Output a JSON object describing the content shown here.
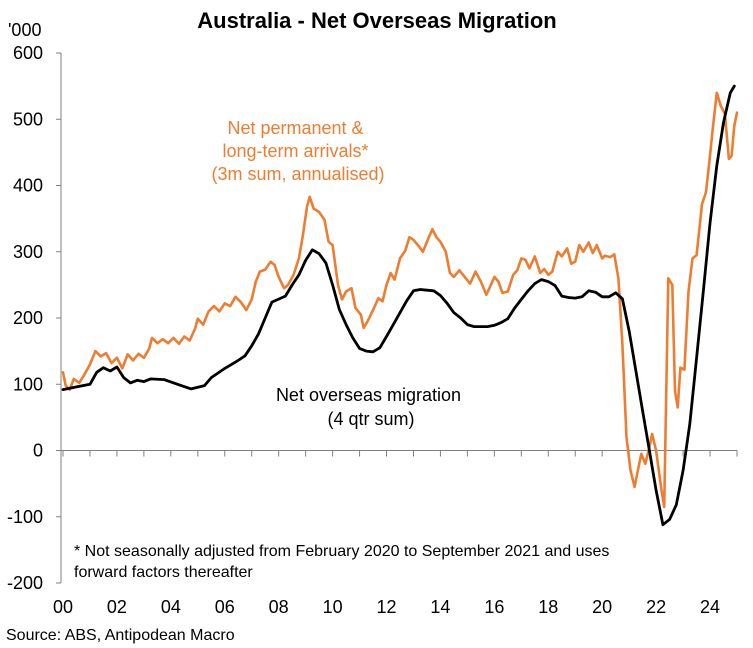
{
  "chart_data": {
    "type": "line",
    "title": "Australia - Net Overseas Migration",
    "ylabel": "'000",
    "ylim": [
      -200,
      600
    ],
    "yticks": [
      -200,
      -100,
      0,
      100,
      200,
      300,
      400,
      500,
      600
    ],
    "xlim": [
      2000,
      2025
    ],
    "xticks": [
      {
        "value": 2000,
        "label": "00"
      },
      {
        "value": 2002,
        "label": "02"
      },
      {
        "value": 2004,
        "label": "04"
      },
      {
        "value": 2006,
        "label": "06"
      },
      {
        "value": 2008,
        "label": "08"
      },
      {
        "value": 2010,
        "label": "10"
      },
      {
        "value": 2012,
        "label": "12"
      },
      {
        "value": 2014,
        "label": "14"
      },
      {
        "value": 2016,
        "label": "16"
      },
      {
        "value": 2018,
        "label": "18"
      },
      {
        "value": 2020,
        "label": "20"
      },
      {
        "value": 2022,
        "label": "22"
      },
      {
        "value": 2024,
        "label": "24"
      }
    ],
    "grid": false,
    "series": [
      {
        "name": "Net overseas migration (4 qtr sum)",
        "color": "#000000",
        "points": [
          [
            2000.0,
            92
          ],
          [
            2000.5,
            96
          ],
          [
            2001.0,
            100
          ],
          [
            2001.25,
            118
          ],
          [
            2001.5,
            125
          ],
          [
            2001.75,
            120
          ],
          [
            2002.0,
            126
          ],
          [
            2002.25,
            110
          ],
          [
            2002.5,
            102
          ],
          [
            2002.75,
            106
          ],
          [
            2003.0,
            104
          ],
          [
            2003.25,
            108
          ],
          [
            2003.75,
            107
          ],
          [
            2004.25,
            100
          ],
          [
            2004.75,
            93
          ],
          [
            2005.25,
            98
          ],
          [
            2005.5,
            110
          ],
          [
            2006.0,
            124
          ],
          [
            2006.5,
            136
          ],
          [
            2006.75,
            143
          ],
          [
            2007.0,
            158
          ],
          [
            2007.25,
            176
          ],
          [
            2007.5,
            200
          ],
          [
            2007.75,
            224
          ],
          [
            2008.25,
            233
          ],
          [
            2008.5,
            250
          ],
          [
            2008.75,
            265
          ],
          [
            2009.0,
            287
          ],
          [
            2009.25,
            303
          ],
          [
            2009.5,
            297
          ],
          [
            2009.75,
            283
          ],
          [
            2010.0,
            250
          ],
          [
            2010.25,
            213
          ],
          [
            2010.5,
            190
          ],
          [
            2010.75,
            170
          ],
          [
            2011.0,
            154
          ],
          [
            2011.25,
            150
          ],
          [
            2011.5,
            149
          ],
          [
            2011.75,
            155
          ],
          [
            2012.0,
            172
          ],
          [
            2012.25,
            190
          ],
          [
            2012.5,
            208
          ],
          [
            2012.75,
            226
          ],
          [
            2013.0,
            241
          ],
          [
            2013.25,
            243
          ],
          [
            2013.5,
            242
          ],
          [
            2013.75,
            241
          ],
          [
            2014.0,
            234
          ],
          [
            2014.25,
            222
          ],
          [
            2014.5,
            208
          ],
          [
            2014.75,
            200
          ],
          [
            2015.0,
            190
          ],
          [
            2015.25,
            187
          ],
          [
            2015.75,
            187
          ],
          [
            2016.0,
            189
          ],
          [
            2016.25,
            193
          ],
          [
            2016.5,
            199
          ],
          [
            2016.75,
            215
          ],
          [
            2017.0,
            228
          ],
          [
            2017.25,
            241
          ],
          [
            2017.5,
            252
          ],
          [
            2017.75,
            258
          ],
          [
            2018.0,
            255
          ],
          [
            2018.25,
            249
          ],
          [
            2018.5,
            233
          ],
          [
            2018.75,
            231
          ],
          [
            2019.0,
            230
          ],
          [
            2019.25,
            232
          ],
          [
            2019.5,
            241
          ],
          [
            2019.75,
            239
          ],
          [
            2020.0,
            232
          ],
          [
            2020.25,
            232
          ],
          [
            2020.5,
            238
          ],
          [
            2020.75,
            229
          ],
          [
            2021.0,
            180
          ],
          [
            2021.25,
            120
          ],
          [
            2021.5,
            60
          ],
          [
            2021.75,
            0
          ],
          [
            2022.0,
            -60
          ],
          [
            2022.25,
            -112
          ],
          [
            2022.5,
            -104
          ],
          [
            2022.75,
            -82
          ],
          [
            2023.0,
            -30
          ],
          [
            2023.25,
            40
          ],
          [
            2023.5,
            140
          ],
          [
            2023.75,
            240
          ],
          [
            2024.0,
            343
          ],
          [
            2024.25,
            430
          ],
          [
            2024.5,
            495
          ],
          [
            2024.75,
            540
          ],
          [
            2024.9,
            550
          ]
        ]
      },
      {
        "name": "Net permanent & long-term arrivals* (3m sum, annualised)",
        "color": "#ED7D31",
        "points": [
          [
            2000.0,
            118
          ],
          [
            2000.1,
            98
          ],
          [
            2000.25,
            92
          ],
          [
            2000.4,
            108
          ],
          [
            2000.6,
            102
          ],
          [
            2000.8,
            115
          ],
          [
            2001.0,
            130
          ],
          [
            2001.2,
            150
          ],
          [
            2001.4,
            142
          ],
          [
            2001.6,
            147
          ],
          [
            2001.8,
            132
          ],
          [
            2002.0,
            140
          ],
          [
            2002.2,
            124
          ],
          [
            2002.4,
            145
          ],
          [
            2002.6,
            136
          ],
          [
            2002.8,
            146
          ],
          [
            2003.0,
            140
          ],
          [
            2003.2,
            154
          ],
          [
            2003.3,
            170
          ],
          [
            2003.5,
            162
          ],
          [
            2003.7,
            168
          ],
          [
            2003.9,
            162
          ],
          [
            2004.1,
            170
          ],
          [
            2004.3,
            161
          ],
          [
            2004.5,
            172
          ],
          [
            2004.7,
            166
          ],
          [
            2004.9,
            184
          ],
          [
            2005.0,
            199
          ],
          [
            2005.2,
            190
          ],
          [
            2005.4,
            210
          ],
          [
            2005.6,
            218
          ],
          [
            2005.8,
            210
          ],
          [
            2006.0,
            222
          ],
          [
            2006.2,
            218
          ],
          [
            2006.4,
            232
          ],
          [
            2006.6,
            224
          ],
          [
            2006.8,
            212
          ],
          [
            2007.0,
            228
          ],
          [
            2007.15,
            255
          ],
          [
            2007.3,
            270
          ],
          [
            2007.5,
            273
          ],
          [
            2007.7,
            285
          ],
          [
            2007.85,
            280
          ],
          [
            2008.0,
            262
          ],
          [
            2008.2,
            245
          ],
          [
            2008.35,
            250
          ],
          [
            2008.55,
            265
          ],
          [
            2008.75,
            290
          ],
          [
            2008.9,
            325
          ],
          [
            2009.05,
            368
          ],
          [
            2009.15,
            383
          ],
          [
            2009.3,
            365
          ],
          [
            2009.5,
            360
          ],
          [
            2009.7,
            348
          ],
          [
            2009.85,
            315
          ],
          [
            2010.0,
            310
          ],
          [
            2010.2,
            250
          ],
          [
            2010.35,
            228
          ],
          [
            2010.5,
            240
          ],
          [
            2010.7,
            245
          ],
          [
            2010.85,
            215
          ],
          [
            2011.05,
            205
          ],
          [
            2011.15,
            185
          ],
          [
            2011.3,
            195
          ],
          [
            2011.5,
            212
          ],
          [
            2011.7,
            230
          ],
          [
            2011.85,
            225
          ],
          [
            2012.0,
            250
          ],
          [
            2012.15,
            268
          ],
          [
            2012.3,
            258
          ],
          [
            2012.5,
            290
          ],
          [
            2012.7,
            302
          ],
          [
            2012.85,
            322
          ],
          [
            2013.0,
            318
          ],
          [
            2013.2,
            308
          ],
          [
            2013.35,
            300
          ],
          [
            2013.55,
            320
          ],
          [
            2013.7,
            334
          ],
          [
            2013.85,
            322
          ],
          [
            2014.0,
            315
          ],
          [
            2014.2,
            300
          ],
          [
            2014.35,
            268
          ],
          [
            2014.5,
            262
          ],
          [
            2014.7,
            272
          ],
          [
            2014.9,
            262
          ],
          [
            2015.1,
            252
          ],
          [
            2015.3,
            270
          ],
          [
            2015.5,
            255
          ],
          [
            2015.7,
            235
          ],
          [
            2015.85,
            248
          ],
          [
            2016.0,
            262
          ],
          [
            2016.15,
            255
          ],
          [
            2016.3,
            238
          ],
          [
            2016.5,
            240
          ],
          [
            2016.7,
            265
          ],
          [
            2016.85,
            272
          ],
          [
            2017.0,
            290
          ],
          [
            2017.15,
            288
          ],
          [
            2017.3,
            275
          ],
          [
            2017.5,
            293
          ],
          [
            2017.7,
            268
          ],
          [
            2017.85,
            274
          ],
          [
            2018.0,
            265
          ],
          [
            2018.15,
            270
          ],
          [
            2018.35,
            300
          ],
          [
            2018.5,
            293
          ],
          [
            2018.7,
            305
          ],
          [
            2018.85,
            282
          ],
          [
            2019.0,
            285
          ],
          [
            2019.15,
            310
          ],
          [
            2019.3,
            300
          ],
          [
            2019.5,
            314
          ],
          [
            2019.65,
            298
          ],
          [
            2019.8,
            310
          ],
          [
            2020.0,
            290
          ],
          [
            2020.1,
            294
          ],
          [
            2020.3,
            292
          ],
          [
            2020.45,
            296
          ],
          [
            2020.6,
            260
          ],
          [
            2020.75,
            160
          ],
          [
            2020.9,
            20
          ],
          [
            2021.05,
            -30
          ],
          [
            2021.2,
            -55
          ],
          [
            2021.3,
            -35
          ],
          [
            2021.45,
            -5
          ],
          [
            2021.6,
            -20
          ],
          [
            2021.75,
            5
          ],
          [
            2021.85,
            25
          ],
          [
            2022.0,
            0
          ],
          [
            2022.1,
            -30
          ],
          [
            2022.2,
            -60
          ],
          [
            2022.3,
            -85
          ],
          [
            2022.45,
            260
          ],
          [
            2022.6,
            250
          ],
          [
            2022.7,
            90
          ],
          [
            2022.8,
            65
          ],
          [
            2022.9,
            125
          ],
          [
            2023.05,
            122
          ],
          [
            2023.2,
            240
          ],
          [
            2023.35,
            290
          ],
          [
            2023.5,
            295
          ],
          [
            2023.7,
            372
          ],
          [
            2023.85,
            390
          ],
          [
            2024.0,
            445
          ],
          [
            2024.1,
            485
          ],
          [
            2024.25,
            540
          ],
          [
            2024.4,
            520
          ],
          [
            2024.55,
            508
          ],
          [
            2024.7,
            440
          ],
          [
            2024.8,
            445
          ],
          [
            2024.9,
            490
          ],
          [
            2025.0,
            510
          ]
        ]
      }
    ],
    "annotations": [
      {
        "name": "orange-label",
        "lines": [
          "Net permanent &",
          "long-term arrivals*",
          "(3m sum, annualised)"
        ],
        "color": "#ED7D31"
      },
      {
        "name": "black-label",
        "lines": [
          "Net overseas migration",
          "(4 qtr sum)"
        ],
        "color": "#000000"
      }
    ],
    "footnote": [
      "* Not seasonally adjusted from February 2020 to September 2021 and uses",
      "forward factors thereafter"
    ],
    "source": "Source: ABS, Antipodean Macro"
  }
}
